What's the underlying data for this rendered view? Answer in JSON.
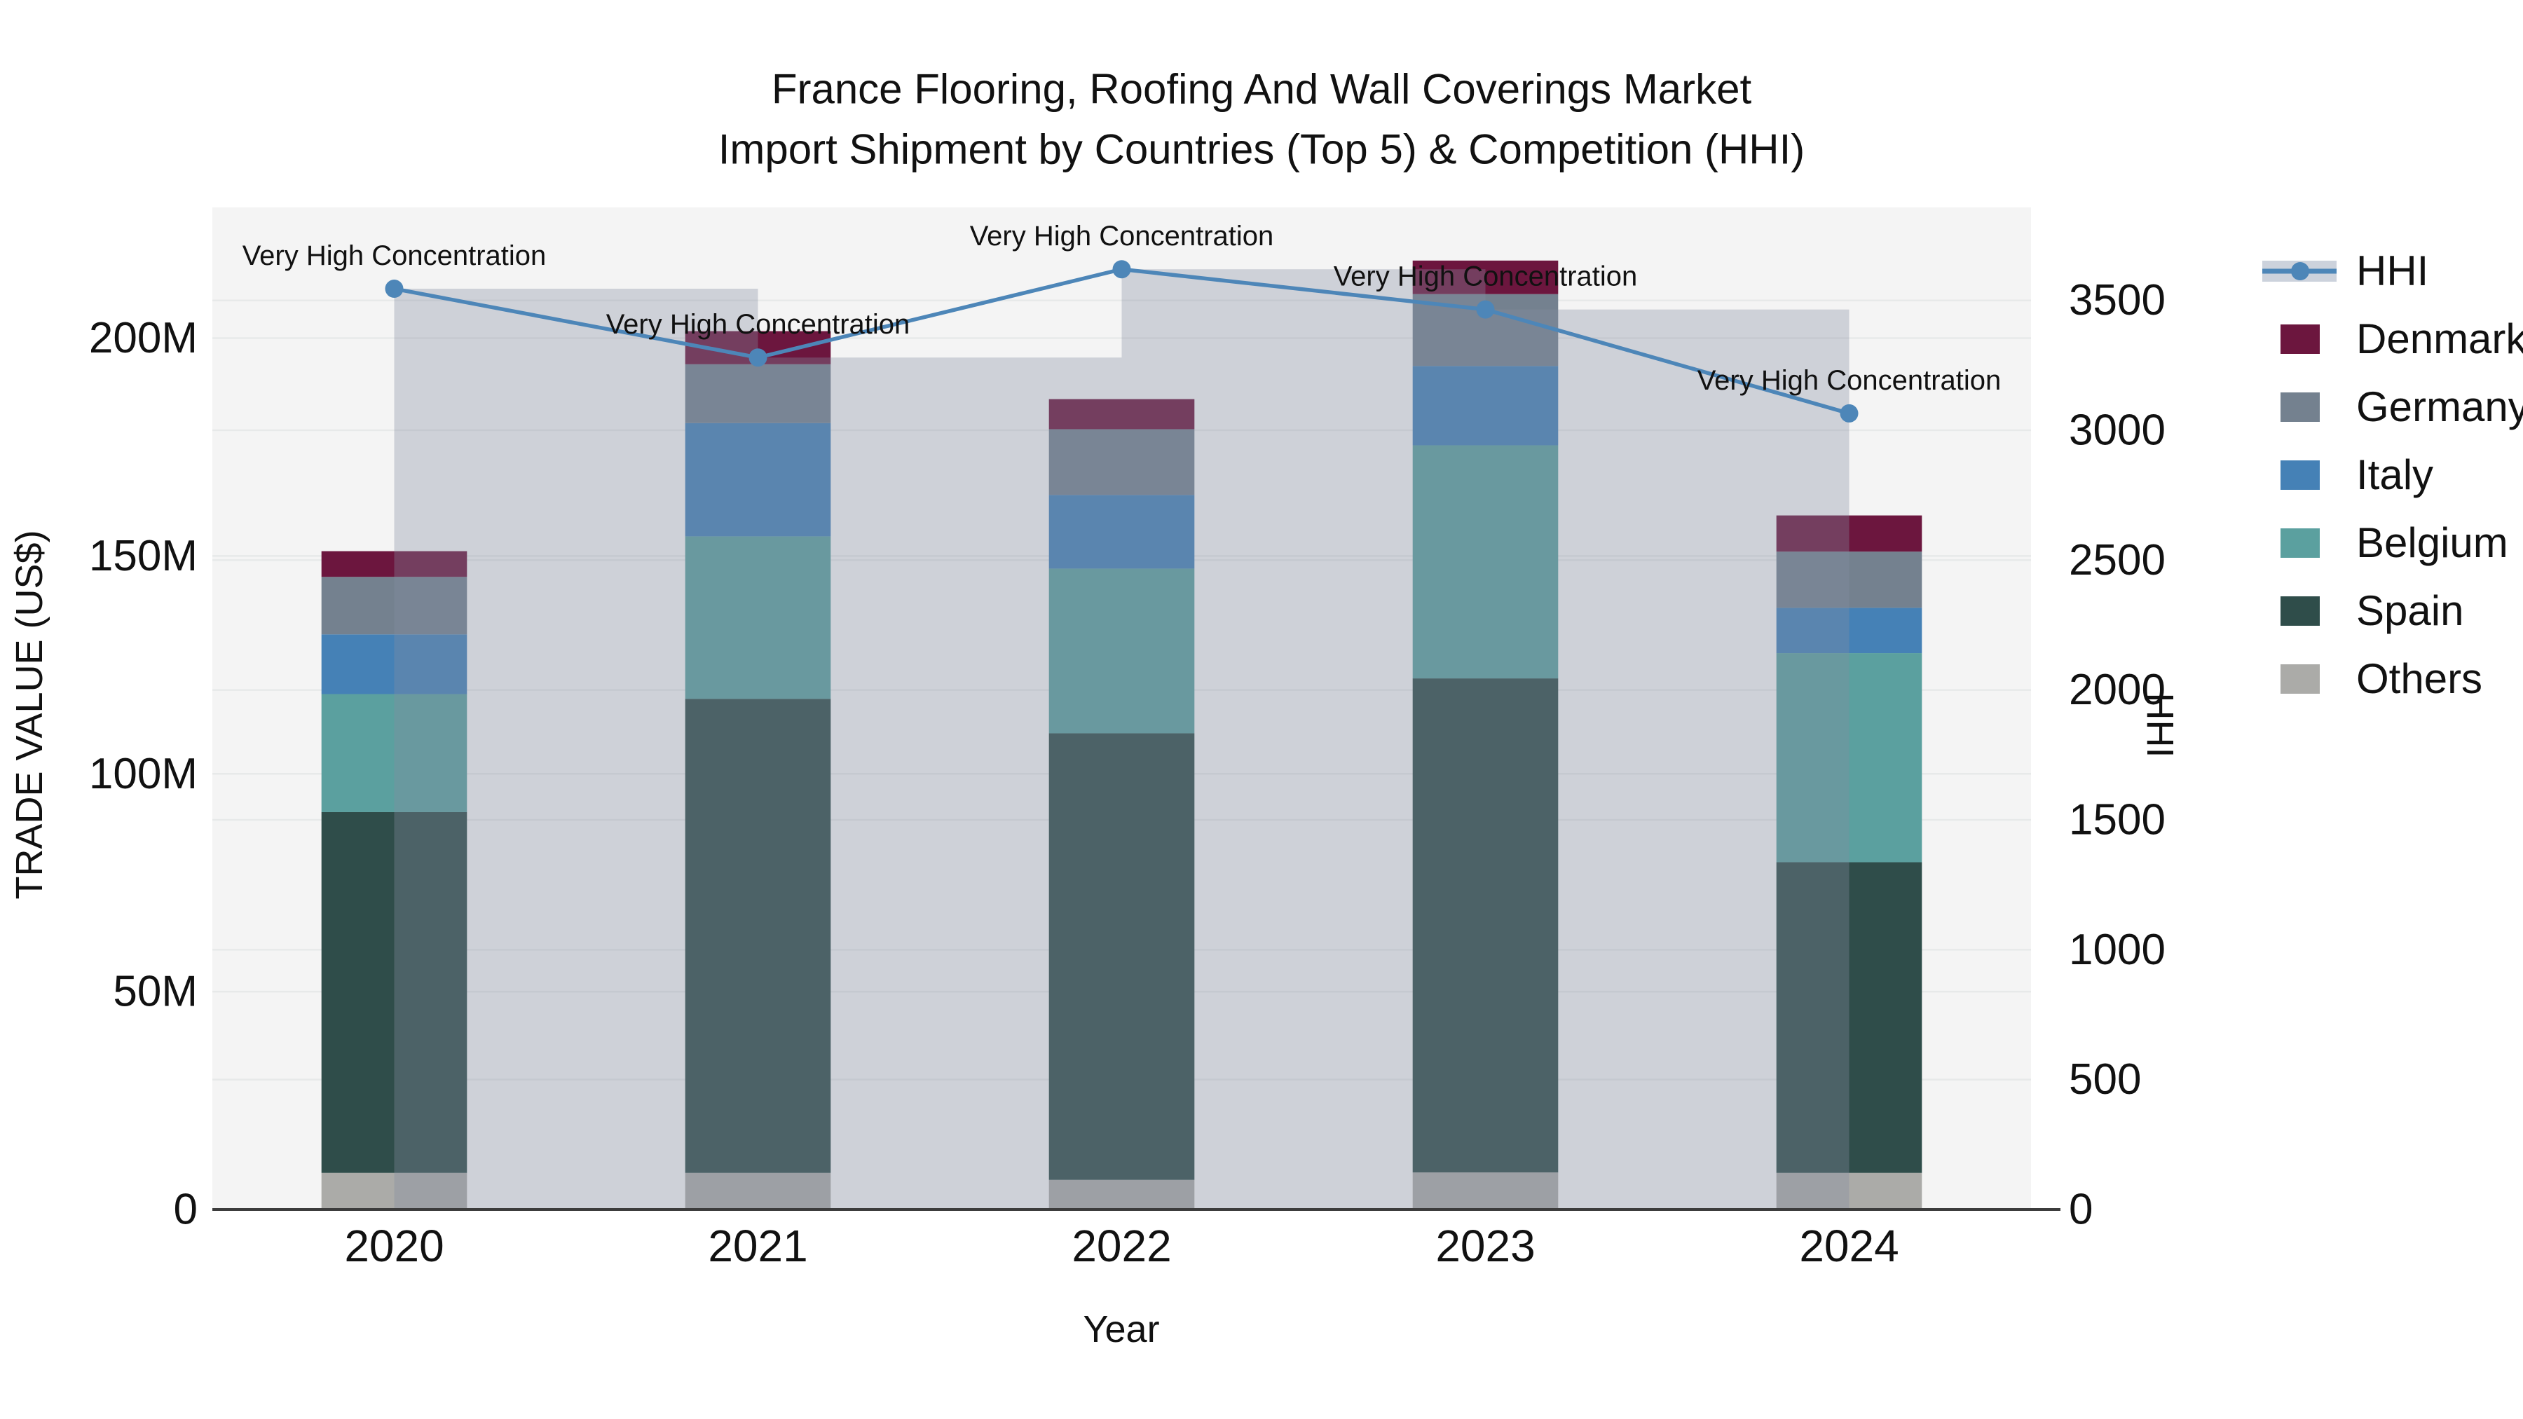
{
  "title": {
    "line1": "France Flooring, Roofing And Wall Coverings Market",
    "line2": "Import Shipment by Countries (Top 5) & Competition (HHI)"
  },
  "chart_data": {
    "type": "bar",
    "subtype": "stacked-bars-with-line",
    "categories": [
      "2020",
      "2021",
      "2022",
      "2023",
      "2024"
    ],
    "value_unit": "US$ millions",
    "series": [
      {
        "name": "Others",
        "color": "#ababa8",
        "values": [
          8.4,
          8.4,
          6.8,
          8.5,
          8.4
        ]
      },
      {
        "name": "Spain",
        "color": "#2f4d4a",
        "values": [
          82.8,
          108.8,
          102.5,
          113.4,
          71.3
        ]
      },
      {
        "name": "Belgium",
        "color": "#5ba09f",
        "values": [
          27.1,
          37.3,
          37.8,
          53.5,
          48.0
        ]
      },
      {
        "name": "Italy",
        "color": "#4581b6",
        "values": [
          13.7,
          26.0,
          16.9,
          18.2,
          10.4
        ]
      },
      {
        "name": "Germany",
        "color": "#74818f",
        "values": [
          13.2,
          13.5,
          15.1,
          16.5,
          12.9
        ]
      },
      {
        "name": "Denmark",
        "color": "#6c163e",
        "values": [
          5.9,
          7.6,
          6.9,
          7.7,
          8.3
        ]
      }
    ],
    "totals": [
      151.1,
      201.6,
      186.0,
      217.8,
      159.3
    ],
    "hhi": {
      "name": "HHI",
      "color": "#4d86b8",
      "band_color": "rgba(133,141,161,0.34)",
      "values": [
        3545,
        3280,
        3620,
        3465,
        3065
      ]
    },
    "annotations": [
      "Very High Concentration",
      "Very High Concentration",
      "Very High Concentration",
      "Very High Concentration",
      "Very High Concentration"
    ],
    "axes": {
      "x_label": "Year",
      "y_left_label": "TRADE VALUE (US$)",
      "y_right_label": "HHI",
      "y_left_max": 230,
      "y_right_max": 3858,
      "y_left_ticks": [
        {
          "v": 0,
          "label": "0"
        },
        {
          "v": 50,
          "label": "50M"
        },
        {
          "v": 100,
          "label": "100M"
        },
        {
          "v": 150,
          "label": "150M"
        },
        {
          "v": 200,
          "label": "200M"
        }
      ],
      "y_right_ticks": [
        {
          "v": 0,
          "label": "0"
        },
        {
          "v": 500,
          "label": "500"
        },
        {
          "v": 1000,
          "label": "1000"
        },
        {
          "v": 1500,
          "label": "1500"
        },
        {
          "v": 2000,
          "label": "2000"
        },
        {
          "v": 2500,
          "label": "2500"
        },
        {
          "v": 3000,
          "label": "3000"
        },
        {
          "v": 3500,
          "label": "3500"
        }
      ],
      "grid_on": true
    },
    "plot_bg": "#f4f4f4",
    "legend_position": "right"
  },
  "legend": {
    "items": [
      {
        "label": "HHI",
        "type": "line",
        "color": "#4d86b8"
      },
      {
        "label": "Denmark",
        "type": "swatch",
        "color": "#6c163e"
      },
      {
        "label": "Germany",
        "type": "swatch",
        "color": "#74818f"
      },
      {
        "label": "Italy",
        "type": "swatch",
        "color": "#4581b6"
      },
      {
        "label": "Belgium",
        "type": "swatch",
        "color": "#5ba09f"
      },
      {
        "label": "Spain",
        "type": "swatch",
        "color": "#2f4d4a"
      },
      {
        "label": "Others",
        "type": "swatch",
        "color": "#ababa8"
      }
    ]
  }
}
